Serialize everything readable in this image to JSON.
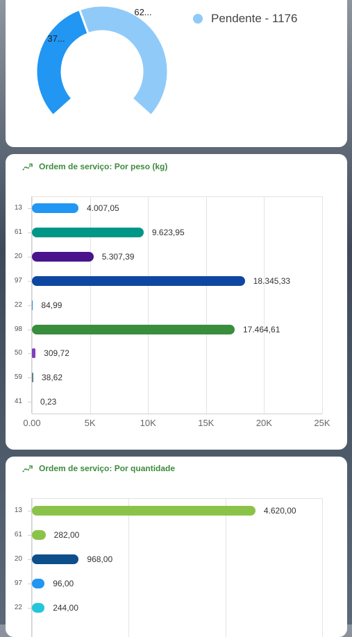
{
  "status_chart": {
    "segments": [
      {
        "label": "37...",
        "color": "#2196f3"
      },
      {
        "label": "62...",
        "color": "#90caf9"
      }
    ],
    "legend": [
      {
        "text": "Pendente - 1176",
        "color": "#90caf9"
      }
    ],
    "legend_partial_color": "#2196f3"
  },
  "weight_card": {
    "title": "Ordem de serviço: Por peso (kg)",
    "icon": "trending-chart-icon"
  },
  "quantity_card": {
    "title": "Ordem de serviço: Por quantidade",
    "icon": "trending-chart-icon"
  },
  "chart_data": [
    {
      "type": "bar",
      "orientation": "horizontal",
      "title": "Ordem de serviço: Por peso (kg)",
      "categories": [
        "13",
        "61",
        "20",
        "97",
        "22",
        "98",
        "50",
        "59",
        "41"
      ],
      "values": [
        4007.05,
        9623.95,
        5307.39,
        18345.33,
        84.99,
        17464.61,
        309.72,
        38.62,
        0.23
      ],
      "value_labels": [
        "4.007,05",
        "9.623,95",
        "5.307,39",
        "18.345,33",
        "84,99",
        "17.464,61",
        "309,72",
        "38,62",
        "0,23"
      ],
      "colors": [
        "#2196f3",
        "#009688",
        "#4a148c",
        "#0d47a1",
        "#1e88e5",
        "#388e3c",
        "#7e3fbf",
        "#607d8b",
        "#9e9e9e"
      ],
      "xlim": [
        0,
        25000
      ],
      "x_ticks": [
        "0.00",
        "5K",
        "10K",
        "15K",
        "20K",
        "25K"
      ],
      "grid": true
    },
    {
      "type": "bar",
      "orientation": "horizontal",
      "title": "Ordem de serviço: Por quantidade",
      "categories": [
        "13",
        "61",
        "20",
        "97",
        "22"
      ],
      "values": [
        4620,
        282,
        968,
        96,
        244
      ],
      "value_labels": [
        "4.620,00",
        "282,00",
        "968,00",
        "96,00",
        "244,00"
      ],
      "colors": [
        "#8bc34a",
        "#8bc34a",
        "#0d4f8b",
        "#2196f3",
        "#26c6da"
      ],
      "xlim": [
        0,
        6000
      ],
      "grid": true
    }
  ]
}
